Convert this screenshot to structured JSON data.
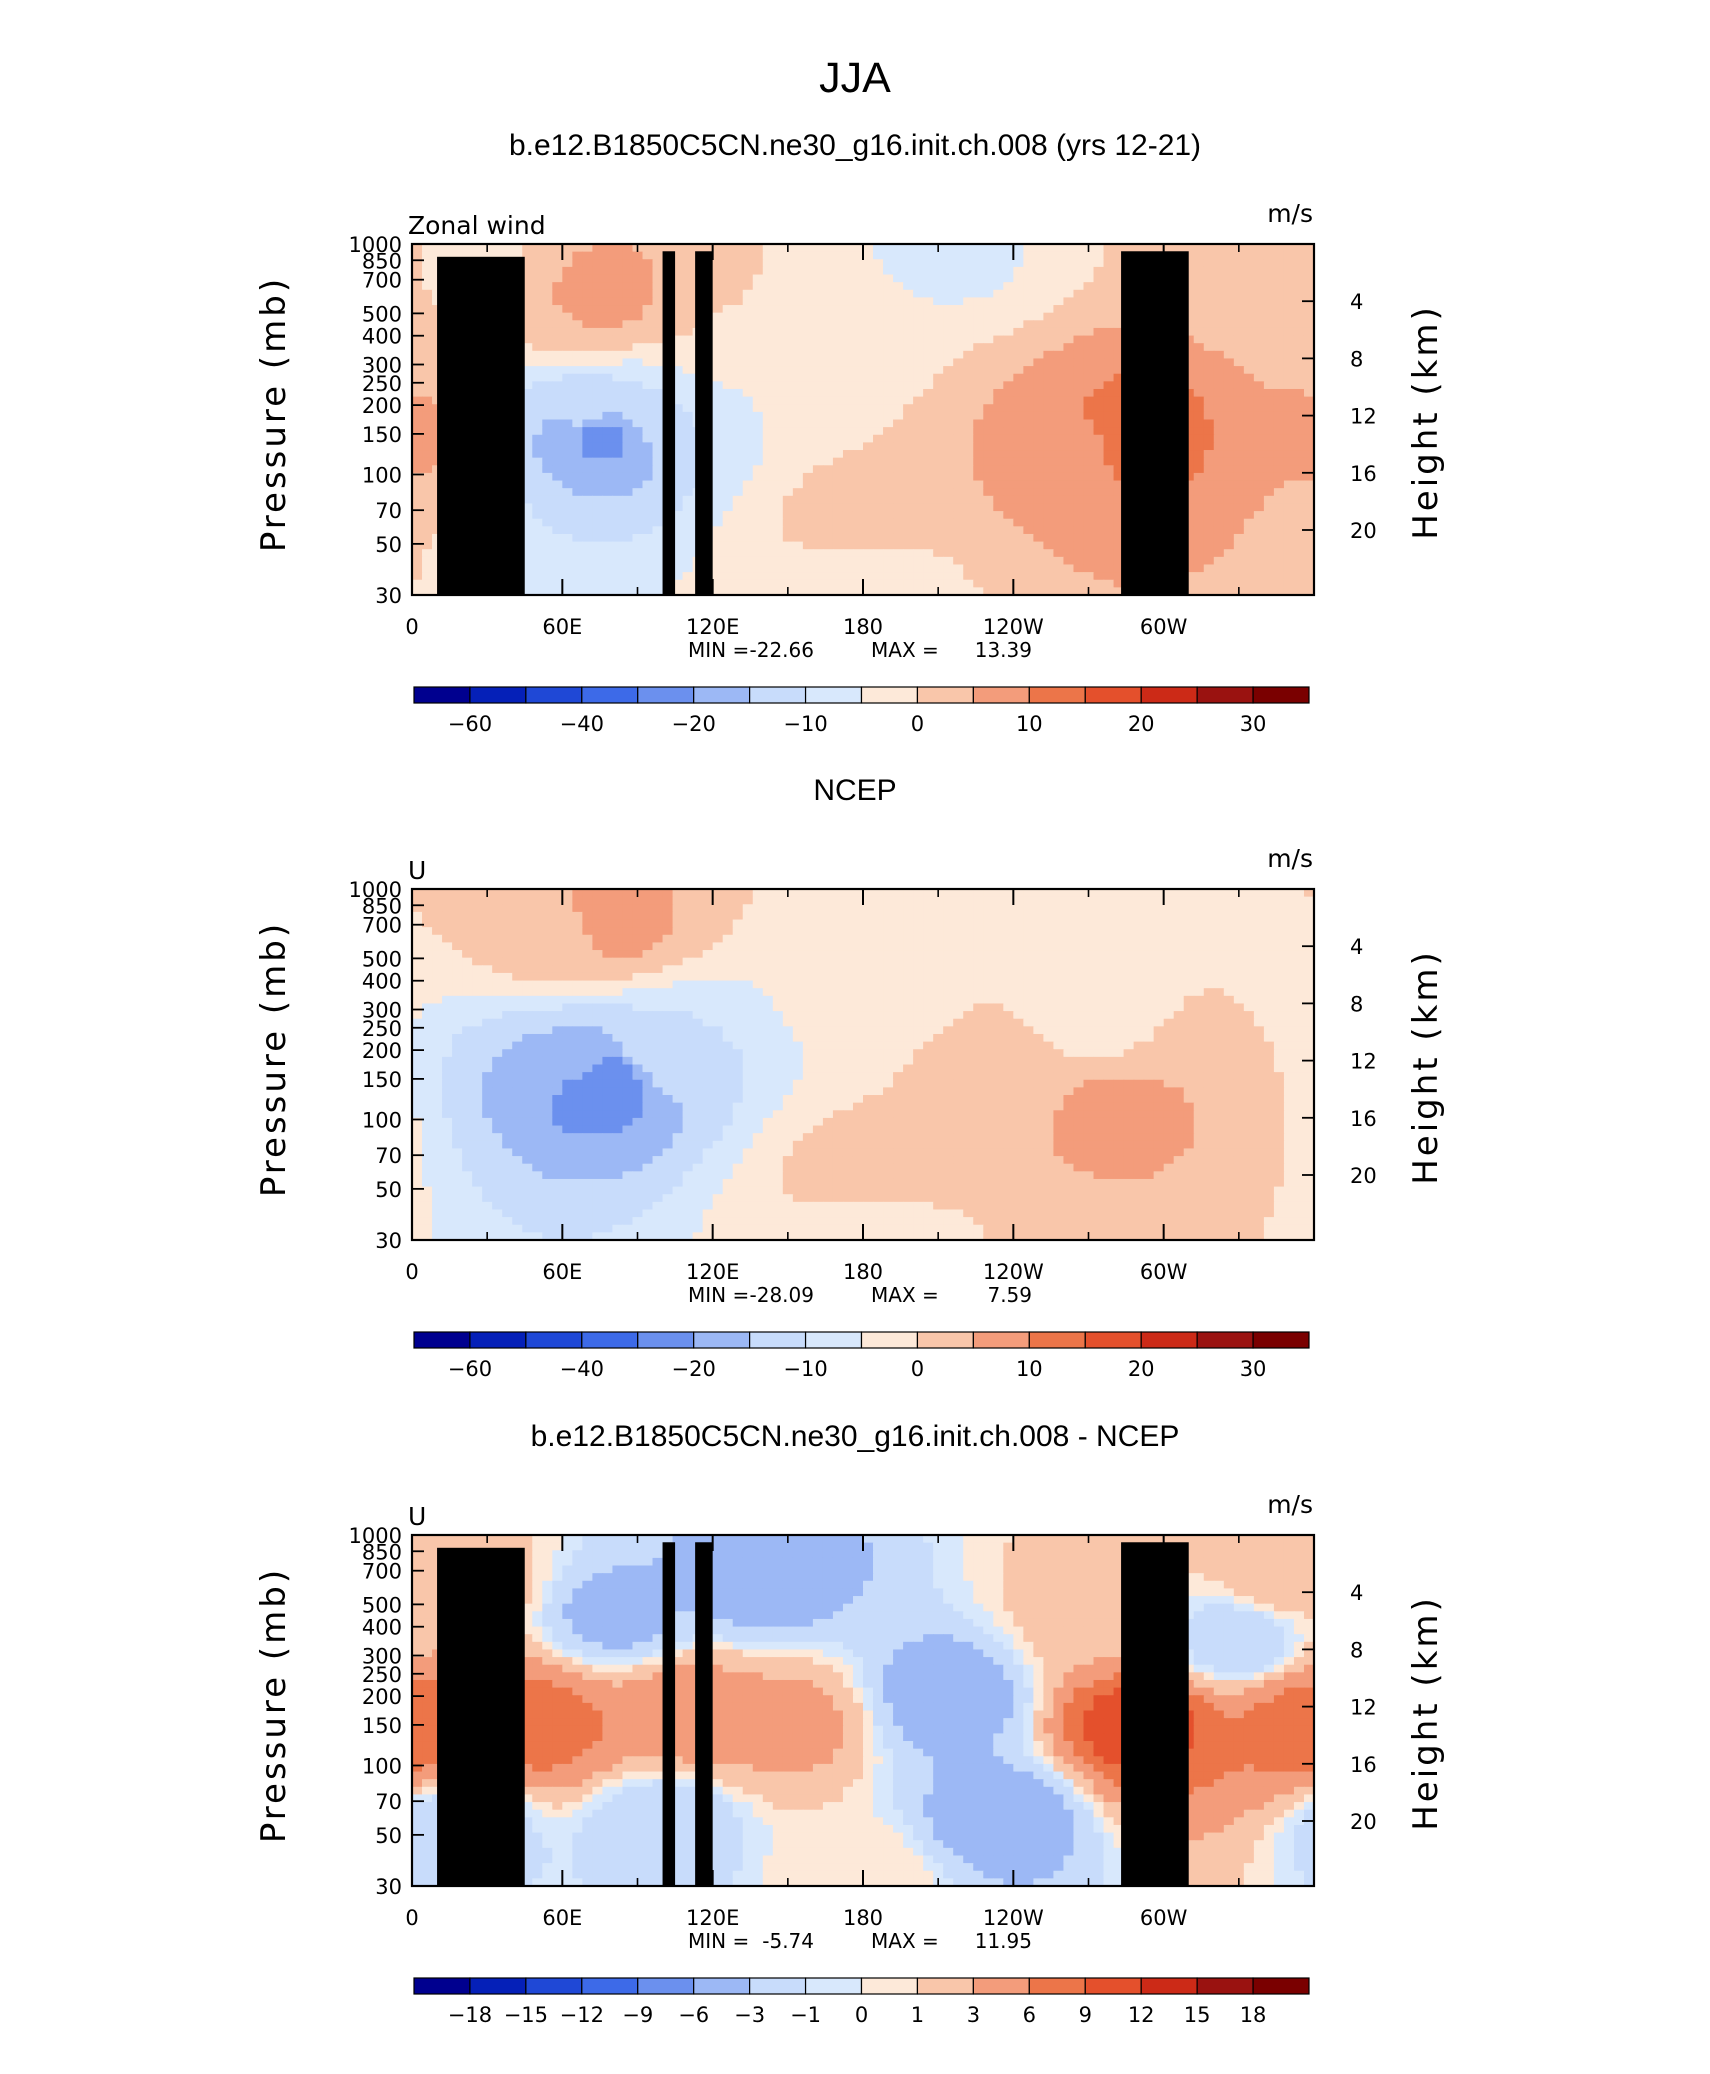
{
  "figure": {
    "main_title": "JJA"
  },
  "colors": {
    "model_scale": [
      "#00008f",
      "#0520b8",
      "#1f48d6",
      "#3d6ae8",
      "#6b90ee",
      "#9cb8f5",
      "#c8dcfb",
      "#d8e8fc",
      "#fde9d9",
      "#f9c6aa",
      "#f39c7b",
      "#ec7549",
      "#e4502c",
      "#cc2a17",
      "#9a1210",
      "#7a0000"
    ],
    "diff_scale": [
      "#00008f",
      "#0520b8",
      "#1f48d6",
      "#3d6ae8",
      "#6b90ee",
      "#9cb8f5",
      "#c8dcfb",
      "#d8e8fc",
      "#fde9d9",
      "#f9c6aa",
      "#f39c7b",
      "#ec7549",
      "#e4502c",
      "#cc2a17",
      "#9a1210",
      "#7a0000"
    ],
    "topography": "#000000"
  },
  "chart_data": [
    {
      "type": "contour",
      "title": "b.e12.B1850C5CN.ne30_g16.init.ch.008 (yrs 12-21)",
      "variable_label": "Zonal wind",
      "units_label": "m/s",
      "ylabel": "Pressure (mb)",
      "ylabel_right": "Height (km)",
      "x_ticks": [
        "0",
        "60E",
        "120E",
        "180",
        "120W",
        "60W"
      ],
      "y_ticks": [
        "30",
        "50",
        "70",
        "100",
        "150",
        "200",
        "250",
        "300",
        "400",
        "500",
        "700",
        "850",
        "1000"
      ],
      "y_ticks_right": [
        "20",
        "16",
        "12",
        "8",
        "4"
      ],
      "stats": {
        "min_label": "MIN =",
        "min_value": "-22.66",
        "max_label": "MAX =",
        "max_value": "13.39"
      },
      "colorbar": {
        "labels": [
          "-60",
          "-40",
          "-20",
          "-10",
          "0",
          "10",
          "20",
          "30"
        ]
      },
      "levels": [
        -70,
        -60,
        -50,
        -40,
        -30,
        -20,
        -15,
        -10,
        -5,
        0,
        5,
        10,
        15,
        20,
        25,
        30,
        35
      ],
      "ylim_mb": [
        1000,
        30
      ],
      "x_range_deg": [
        0,
        360
      ],
      "field": [
        {
          "x": 0,
          "p": 150,
          "value": 6
        },
        {
          "x": 20,
          "p": 900,
          "value": -2
        },
        {
          "x": 75,
          "p": 150,
          "value": -22
        },
        {
          "x": 70,
          "p": 180,
          "value": -14
        },
        {
          "x": 95,
          "p": 200,
          "value": -10
        },
        {
          "x": 80,
          "p": 600,
          "value": 8
        },
        {
          "x": 70,
          "p": 500,
          "value": 5
        },
        {
          "x": 110,
          "p": 500,
          "value": 3
        },
        {
          "x": 120,
          "p": 400,
          "value": -3
        },
        {
          "x": 170,
          "p": 300,
          "value": -4
        },
        {
          "x": 290,
          "p": 150,
          "value": 13
        },
        {
          "x": 265,
          "p": 130,
          "value": 9
        },
        {
          "x": 230,
          "p": 120,
          "value": 5
        },
        {
          "x": 215,
          "p": 900,
          "value": -6
        },
        {
          "x": 345,
          "p": 900,
          "value": 3
        },
        {
          "x": 180,
          "p": 60,
          "value": 3
        },
        {
          "x": 180,
          "p": 35,
          "value": -4
        }
      ],
      "topography": [
        {
          "from": 10,
          "to": 45,
          "height_mb": 880
        },
        {
          "from": 100,
          "to": 105,
          "height_mb": 930
        },
        {
          "from": 113,
          "to": 120,
          "height_mb": 930
        },
        {
          "from": 283,
          "to": 310,
          "height_mb": 930
        }
      ]
    },
    {
      "type": "contour",
      "title": "NCEP",
      "variable_label": "U",
      "units_label": "m/s",
      "ylabel": "Pressure (mb)",
      "ylabel_right": "Height (km)",
      "x_ticks": [
        "0",
        "60E",
        "120E",
        "180",
        "120W",
        "60W"
      ],
      "y_ticks": [
        "30",
        "50",
        "70",
        "100",
        "150",
        "200",
        "250",
        "300",
        "400",
        "500",
        "700",
        "850",
        "1000"
      ],
      "y_ticks_right": [
        "20",
        "16",
        "12",
        "8",
        "4"
      ],
      "stats": {
        "min_label": "MIN =",
        "min_value": "-28.09",
        "max_label": "MAX =",
        "max_value": "7.59"
      },
      "colorbar": {
        "labels": [
          "-60",
          "-40",
          "-20",
          "-10",
          "0",
          "10",
          "20",
          "30"
        ]
      },
      "levels": [
        -70,
        -60,
        -50,
        -40,
        -30,
        -20,
        -15,
        -10,
        -5,
        0,
        5,
        10,
        15,
        20,
        25,
        30,
        35
      ],
      "ylim_mb": [
        1000,
        30
      ],
      "x_range_deg": [
        0,
        360
      ],
      "field": [
        {
          "x": 75,
          "p": 150,
          "value": -26
        },
        {
          "x": 65,
          "p": 180,
          "value": -15
        },
        {
          "x": 100,
          "p": 200,
          "value": -10
        },
        {
          "x": 80,
          "p": 700,
          "value": 7
        },
        {
          "x": 60,
          "p": 600,
          "value": 3
        },
        {
          "x": 280,
          "p": 110,
          "value": 7
        },
        {
          "x": 245,
          "p": 150,
          "value": 4
        },
        {
          "x": 300,
          "p": 120,
          "value": 5
        },
        {
          "x": 270,
          "p": 250,
          "value": -3
        },
        {
          "x": 180,
          "p": 400,
          "value": -3
        },
        {
          "x": 180,
          "p": 55,
          "value": 3
        },
        {
          "x": 180,
          "p": 33,
          "value": -3
        }
      ]
    },
    {
      "type": "contour",
      "title": "b.e12.B1850C5CN.ne30_g16.init.ch.008 - NCEP",
      "variable_label": "U",
      "units_label": "m/s",
      "ylabel": "Pressure (mb)",
      "ylabel_right": "Height (km)",
      "x_ticks": [
        "0",
        "60E",
        "120E",
        "180",
        "120W",
        "60W"
      ],
      "y_ticks": [
        "30",
        "50",
        "70",
        "100",
        "150",
        "200",
        "250",
        "300",
        "400",
        "500",
        "700",
        "850",
        "1000"
      ],
      "y_ticks_right": [
        "20",
        "16",
        "12",
        "8",
        "4"
      ],
      "stats": {
        "min_label": "MIN =",
        "min_value": "-5.74",
        "max_label": "MAX =",
        "max_value": "11.95"
      },
      "colorbar": {
        "labels": [
          "-18",
          "-15",
          "-12",
          "-9",
          "-6",
          "-3",
          "-1",
          "0",
          "1",
          "3",
          "6",
          "9",
          "12",
          "15",
          "18"
        ]
      },
      "levels": [
        -21,
        -18,
        -15,
        -12,
        -9,
        -6,
        -3,
        -1,
        0,
        1,
        3,
        6,
        9,
        12,
        15,
        18,
        21
      ],
      "ylim_mb": [
        1000,
        30
      ],
      "x_range_deg": [
        0,
        360
      ],
      "field": [
        {
          "x": 10,
          "p": 150,
          "value": 8
        },
        {
          "x": 50,
          "p": 150,
          "value": 8
        },
        {
          "x": 110,
          "p": 170,
          "value": 5
        },
        {
          "x": 150,
          "p": 150,
          "value": 4
        },
        {
          "x": 290,
          "p": 150,
          "value": 11
        },
        {
          "x": 355,
          "p": 150,
          "value": 7
        },
        {
          "x": 215,
          "p": 200,
          "value": -5
        },
        {
          "x": 235,
          "p": 60,
          "value": -5
        },
        {
          "x": 100,
          "p": 55,
          "value": -3
        },
        {
          "x": 20,
          "p": 55,
          "value": -3
        },
        {
          "x": 80,
          "p": 450,
          "value": -4
        },
        {
          "x": 140,
          "p": 650,
          "value": -5
        },
        {
          "x": 25,
          "p": 600,
          "value": 2
        },
        {
          "x": 345,
          "p": 650,
          "value": 2
        },
        {
          "x": 270,
          "p": 450,
          "value": 2
        },
        {
          "x": 330,
          "p": 350,
          "value": -3
        },
        {
          "x": 180,
          "p": 33,
          "value": 1
        }
      ],
      "topography": [
        {
          "from": 10,
          "to": 45,
          "height_mb": 880
        },
        {
          "from": 100,
          "to": 105,
          "height_mb": 930
        },
        {
          "from": 113,
          "to": 120,
          "height_mb": 930
        },
        {
          "from": 283,
          "to": 310,
          "height_mb": 930
        }
      ]
    }
  ]
}
